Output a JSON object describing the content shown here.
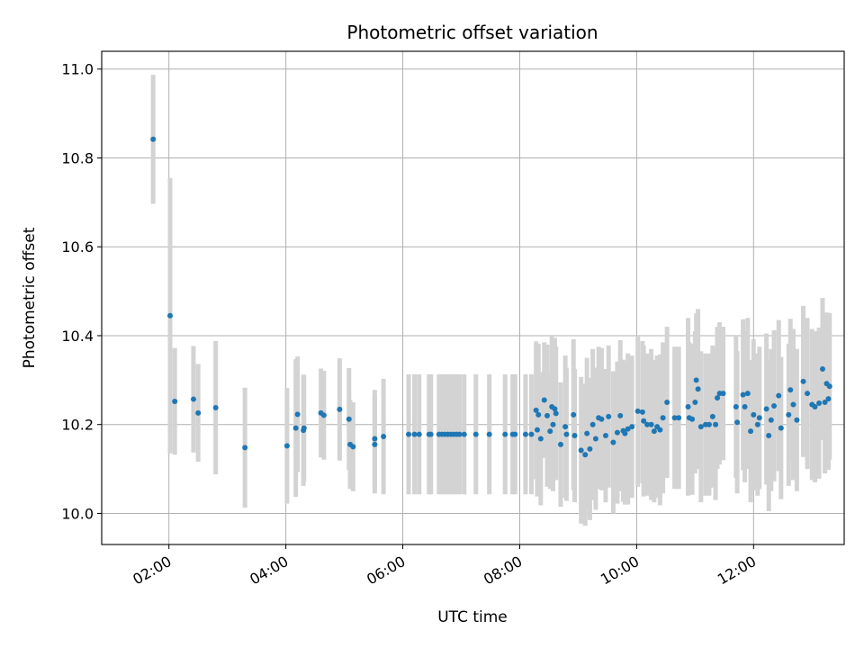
{
  "chart_data": {
    "type": "scatter",
    "title": "Photometric offset variation",
    "xlabel": "UTC time",
    "ylabel": "Photometric offset",
    "x_unit": "hour",
    "xlim": [
      0.85,
      13.55
    ],
    "ylim": [
      9.93,
      11.04
    ],
    "x_ticks": [
      {
        "value": 2,
        "label": "02:00"
      },
      {
        "value": 4,
        "label": "04:00"
      },
      {
        "value": 6,
        "label": "06:00"
      },
      {
        "value": 8,
        "label": "08:00"
      },
      {
        "value": 10,
        "label": "10:00"
      },
      {
        "value": 12,
        "label": "12:00"
      }
    ],
    "y_ticks": [
      {
        "value": 10.0,
        "label": "10.0"
      },
      {
        "value": 10.2,
        "label": "10.2"
      },
      {
        "value": 10.4,
        "label": "10.4"
      },
      {
        "value": 10.6,
        "label": "10.6"
      },
      {
        "value": 10.8,
        "label": "10.8"
      },
      {
        "value": 11.0,
        "label": "11.0"
      }
    ],
    "grid": true,
    "colors": {
      "marker": "#1f77b4",
      "errorbar": "#d3d3d3",
      "grid": "#b0b0b0",
      "axes": "#000000"
    },
    "points": [
      [
        1.73,
        10.842,
        0.145
      ],
      [
        2.02,
        10.445,
        0.31
      ],
      [
        2.1,
        10.252,
        0.12
      ],
      [
        2.42,
        10.257,
        0.12
      ],
      [
        2.5,
        10.226,
        0.11
      ],
      [
        2.8,
        10.238,
        0.15
      ],
      [
        3.3,
        10.148,
        0.135
      ],
      [
        4.02,
        10.152,
        0.13
      ],
      [
        4.17,
        10.192,
        0.155
      ],
      [
        4.2,
        10.223,
        0.13
      ],
      [
        4.3,
        10.187,
        0.125
      ],
      [
        4.31,
        10.192,
        0.12
      ],
      [
        4.6,
        10.226,
        0.1
      ],
      [
        4.65,
        10.221,
        0.1
      ],
      [
        4.92,
        10.234,
        0.115
      ],
      [
        5.08,
        10.212,
        0.115
      ],
      [
        5.1,
        10.155,
        0.1
      ],
      [
        5.15,
        10.15,
        0.1
      ],
      [
        5.52,
        10.168,
        0.11
      ],
      [
        5.52,
        10.155,
        0.11
      ],
      [
        5.67,
        10.173,
        0.13
      ],
      [
        6.1,
        10.178,
        0.135
      ],
      [
        6.2,
        10.178,
        0.135
      ],
      [
        6.28,
        10.178,
        0.135
      ],
      [
        6.45,
        10.178,
        0.135
      ],
      [
        6.48,
        10.178,
        0.135
      ],
      [
        6.62,
        10.178,
        0.135
      ],
      [
        6.67,
        10.178,
        0.135
      ],
      [
        6.72,
        10.178,
        0.135
      ],
      [
        6.77,
        10.178,
        0.135
      ],
      [
        6.82,
        10.178,
        0.135
      ],
      [
        6.87,
        10.178,
        0.135
      ],
      [
        6.92,
        10.178,
        0.135
      ],
      [
        6.97,
        10.178,
        0.135
      ],
      [
        7.05,
        10.178,
        0.135
      ],
      [
        7.25,
        10.178,
        0.135
      ],
      [
        7.48,
        10.178,
        0.135
      ],
      [
        7.75,
        10.178,
        0.135
      ],
      [
        7.88,
        10.178,
        0.135
      ],
      [
        7.92,
        10.178,
        0.135
      ],
      [
        8.1,
        10.178,
        0.135
      ],
      [
        8.2,
        10.178,
        0.135
      ],
      [
        8.28,
        10.232,
        0.155
      ],
      [
        8.3,
        10.188,
        0.15
      ],
      [
        8.32,
        10.222,
        0.16
      ],
      [
        8.36,
        10.168,
        0.15
      ],
      [
        8.42,
        10.255,
        0.13
      ],
      [
        8.47,
        10.22,
        0.16
      ],
      [
        8.52,
        10.185,
        0.13
      ],
      [
        8.55,
        10.24,
        0.16
      ],
      [
        8.57,
        10.2,
        0.15
      ],
      [
        8.6,
        10.235,
        0.16
      ],
      [
        8.62,
        10.225,
        0.15
      ],
      [
        8.7,
        10.155,
        0.14
      ],
      [
        8.78,
        10.195,
        0.16
      ],
      [
        8.8,
        10.178,
        0.15
      ],
      [
        8.92,
        10.222,
        0.17
      ],
      [
        8.94,
        10.175,
        0.15
      ],
      [
        9.05,
        10.142,
        0.165
      ],
      [
        9.12,
        10.132,
        0.16
      ],
      [
        9.15,
        10.18,
        0.17
      ],
      [
        9.2,
        10.145,
        0.16
      ],
      [
        9.25,
        10.2,
        0.17
      ],
      [
        9.3,
        10.168,
        0.16
      ],
      [
        9.35,
        10.215,
        0.16
      ],
      [
        9.4,
        10.212,
        0.16
      ],
      [
        9.47,
        10.175,
        0.15
      ],
      [
        9.52,
        10.218,
        0.16
      ],
      [
        9.6,
        10.16,
        0.16
      ],
      [
        9.67,
        10.182,
        0.16
      ],
      [
        9.72,
        10.22,
        0.17
      ],
      [
        9.77,
        10.186,
        0.16
      ],
      [
        9.8,
        10.18,
        0.16
      ],
      [
        9.85,
        10.19,
        0.17
      ],
      [
        9.92,
        10.195,
        0.16
      ],
      [
        10.02,
        10.23,
        0.17
      ],
      [
        10.1,
        10.228,
        0.16
      ],
      [
        10.12,
        10.208,
        0.17
      ],
      [
        10.18,
        10.2,
        0.16
      ],
      [
        10.25,
        10.2,
        0.17
      ],
      [
        10.3,
        10.185,
        0.16
      ],
      [
        10.35,
        10.195,
        0.16
      ],
      [
        10.4,
        10.188,
        0.17
      ],
      [
        10.45,
        10.215,
        0.17
      ],
      [
        10.52,
        10.25,
        0.17
      ],
      [
        10.65,
        10.215,
        0.16
      ],
      [
        10.72,
        10.215,
        0.16
      ],
      [
        10.88,
        10.24,
        0.2
      ],
      [
        10.9,
        10.215,
        0.17
      ],
      [
        10.95,
        10.212,
        0.17
      ],
      [
        11.0,
        10.25,
        0.16
      ],
      [
        11.02,
        10.3,
        0.15
      ],
      [
        11.05,
        10.28,
        0.18
      ],
      [
        11.1,
        10.195,
        0.17
      ],
      [
        11.18,
        10.2,
        0.16
      ],
      [
        11.24,
        10.2,
        0.16
      ],
      [
        11.3,
        10.218,
        0.16
      ],
      [
        11.35,
        10.2,
        0.17
      ],
      [
        11.38,
        10.26,
        0.16
      ],
      [
        11.42,
        10.27,
        0.16
      ],
      [
        11.48,
        10.27,
        0.15
      ],
      [
        11.7,
        10.24,
        0.16
      ],
      [
        11.72,
        10.205,
        0.16
      ],
      [
        11.82,
        10.267,
        0.17
      ],
      [
        11.85,
        10.24,
        0.17
      ],
      [
        11.9,
        10.27,
        0.17
      ],
      [
        11.95,
        10.185,
        0.16
      ],
      [
        12.0,
        10.222,
        0.17
      ],
      [
        12.07,
        10.2,
        0.16
      ],
      [
        12.1,
        10.215,
        0.16
      ],
      [
        12.22,
        10.235,
        0.17
      ],
      [
        12.26,
        10.175,
        0.17
      ],
      [
        12.3,
        10.21,
        0.16
      ],
      [
        12.35,
        10.242,
        0.17
      ],
      [
        12.43,
        10.265,
        0.17
      ],
      [
        12.47,
        10.192,
        0.16
      ],
      [
        12.6,
        10.222,
        0.16
      ],
      [
        12.63,
        10.278,
        0.16
      ],
      [
        12.68,
        10.245,
        0.17
      ],
      [
        12.74,
        10.21,
        0.16
      ],
      [
        12.85,
        10.297,
        0.17
      ],
      [
        12.92,
        10.27,
        0.17
      ],
      [
        13.0,
        10.245,
        0.17
      ],
      [
        13.05,
        10.24,
        0.17
      ],
      [
        13.12,
        10.248,
        0.17
      ],
      [
        13.18,
        10.325,
        0.16
      ],
      [
        13.22,
        10.25,
        0.16
      ],
      [
        13.25,
        10.292,
        0.16
      ],
      [
        13.28,
        10.258,
        0.16
      ],
      [
        13.3,
        10.286,
        0.165
      ]
    ]
  }
}
